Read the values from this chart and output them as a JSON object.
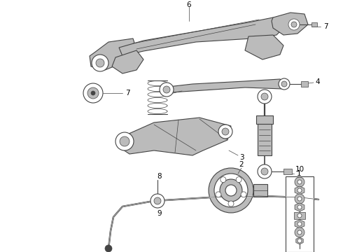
{
  "background_color": "#ffffff",
  "figure_width": 4.9,
  "figure_height": 3.6,
  "dpi": 100,
  "dgray": "#444444",
  "lgray": "#bbbbbb",
  "mgray": "#888888",
  "white": "#ffffff",
  "lw_thick": 1.2,
  "lw_med": 0.8,
  "lw_thin": 0.5,
  "label_fs": 7.5
}
